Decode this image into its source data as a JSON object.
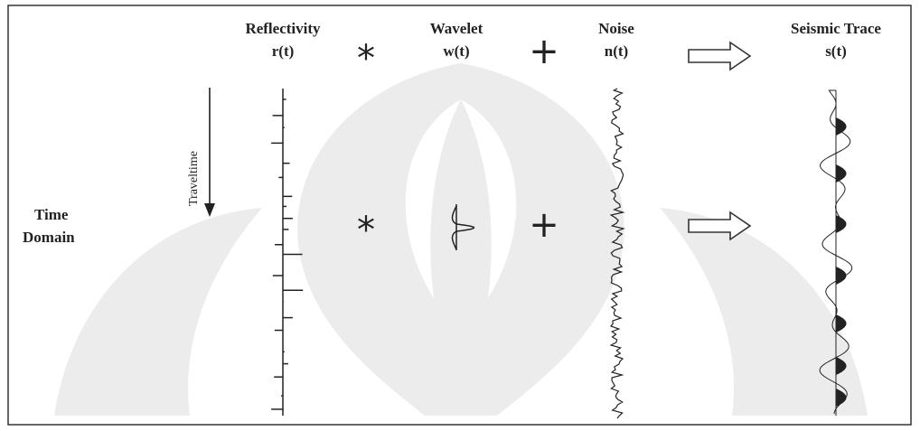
{
  "header": {
    "columns": [
      {
        "name": "Reflectivity",
        "symbol": "r(t)"
      },
      {
        "name": "Wavelet",
        "symbol": "w(t)"
      },
      {
        "name": "Noise",
        "symbol": "n(t)"
      },
      {
        "name": "Seismic Trace",
        "symbol": "s(t)"
      }
    ]
  },
  "operators": {
    "convolve": "*",
    "add": "+"
  },
  "row": {
    "label_line1": "Time",
    "label_line2": "Domain",
    "axis_label": "Traveltime"
  }
}
